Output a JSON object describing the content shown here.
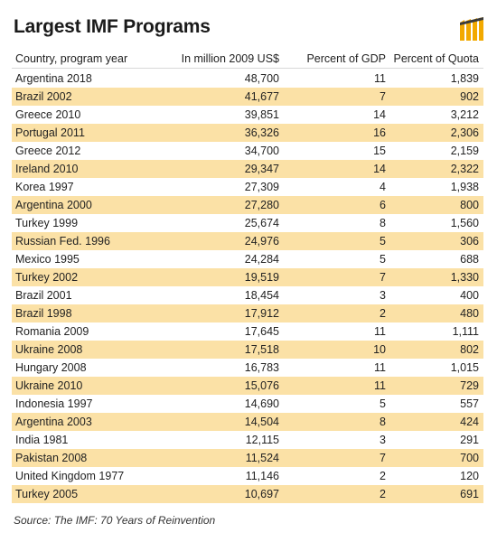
{
  "title": "Largest IMF Programs",
  "logo_icon": "bars-logo-icon",
  "colors": {
    "stripe": "#fbe1a6",
    "logo": "#f2a900"
  },
  "chart_data": {
    "type": "table",
    "columns": [
      "Country, program year",
      "In million 2009 US$",
      "Percent of GDP",
      "Percent of Quota"
    ],
    "rows": [
      [
        "Argentina 2018",
        "48,700",
        "11",
        "1,839"
      ],
      [
        "Brazil 2002",
        "41,677",
        "7",
        "902"
      ],
      [
        "Greece 2010",
        "39,851",
        "14",
        "3,212"
      ],
      [
        "Portugal 2011",
        "36,326",
        "16",
        "2,306"
      ],
      [
        "Greece 2012",
        "34,700",
        "15",
        "2,159"
      ],
      [
        "Ireland 2010",
        "29,347",
        "14",
        "2,322"
      ],
      [
        "Korea 1997",
        "27,309",
        "4",
        "1,938"
      ],
      [
        "Argentina 2000",
        "27,280",
        "6",
        "800"
      ],
      [
        "Turkey 1999",
        "25,674",
        "8",
        "1,560"
      ],
      [
        "Russian Fed. 1996",
        "24,976",
        "5",
        "306"
      ],
      [
        "Mexico 1995",
        "24,284",
        "5",
        "688"
      ],
      [
        "Turkey 2002",
        "19,519",
        "7",
        "1,330"
      ],
      [
        "Brazil 2001",
        "18,454",
        "3",
        "400"
      ],
      [
        "Brazil 1998",
        "17,912",
        "2",
        "480"
      ],
      [
        "Romania 2009",
        "17,645",
        "11",
        "1,111"
      ],
      [
        "Ukraine 2008",
        "17,518",
        "10",
        "802"
      ],
      [
        "Hungary 2008",
        "16,783",
        "11",
        "1,015"
      ],
      [
        "Ukraine 2010",
        "15,076",
        "11",
        "729"
      ],
      [
        "Indonesia 1997",
        "14,690",
        "5",
        "557"
      ],
      [
        "Argentina 2003",
        "14,504",
        "8",
        "424"
      ],
      [
        "India 1981",
        "12,115",
        "3",
        "291"
      ],
      [
        "Pakistan 2008",
        "11,524",
        "7",
        "700"
      ],
      [
        "United Kingdom 1977",
        "11,146",
        "2",
        "120"
      ],
      [
        "Turkey 2005",
        "10,697",
        "2",
        "691"
      ]
    ]
  },
  "source": "Source: The IMF: 70 Years of Reinvention"
}
